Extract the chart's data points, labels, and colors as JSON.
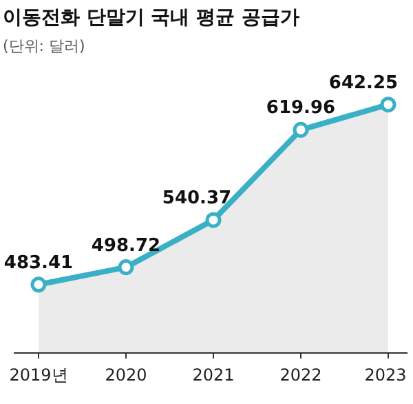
{
  "chart_data": {
    "type": "area",
    "title": "이동전화 단말기 국내 평균 공급가",
    "subtitle": "(단위: 달러)",
    "categories": [
      "2019년",
      "2020",
      "2021",
      "2022",
      "2023"
    ],
    "values": [
      483.41,
      498.72,
      540.37,
      619.96,
      642.25
    ],
    "color": "#3ab0c6",
    "marker": "circle",
    "data_labels": true
  }
}
